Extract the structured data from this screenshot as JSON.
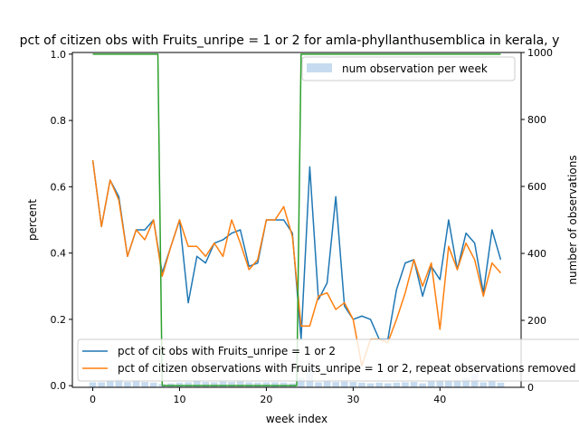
{
  "chart_data": {
    "type": "line",
    "title": "pct of citizen obs with Fruits_unripe = 1 or 2 for amla-phyllanthusemblica in kerala, y",
    "xlabel": "week index",
    "ylabel": "percent",
    "ylabel_right": "number of observations",
    "xlim": [
      -2.35,
      49.35
    ],
    "ylim": [
      -0.005,
      1.005
    ],
    "ylim_right": [
      0,
      1000
    ],
    "x_ticks": [
      0,
      10,
      20,
      30,
      40
    ],
    "y_ticks": [
      0.0,
      0.2,
      0.4,
      0.6,
      0.8,
      1.0
    ],
    "y_ticks_right": [
      0,
      200,
      400,
      600,
      800,
      1000
    ],
    "grid": false,
    "legend_upper": {
      "placement": "top-right",
      "entries": [
        "num observation per week"
      ]
    },
    "legend_lower": {
      "placement": "bottom-left",
      "entries": [
        "pct of cit obs with Fruits_unripe = 1 or 2",
        "pct of citizen observations with Fruits_unripe = 1 or 2, repeat observations removed"
      ]
    },
    "x": [
      0,
      1,
      2,
      3,
      4,
      5,
      6,
      7,
      8,
      9,
      10,
      11,
      12,
      13,
      14,
      15,
      16,
      17,
      18,
      19,
      20,
      21,
      22,
      23,
      24,
      25,
      26,
      27,
      28,
      29,
      30,
      31,
      32,
      33,
      34,
      35,
      36,
      37,
      38,
      39,
      40,
      41,
      42,
      43,
      44,
      45,
      46,
      47
    ],
    "series": [
      {
        "name": "pct of cit obs with Fruits_unripe = 1 or 2",
        "color": "#1f77b4",
        "axis": "left",
        "values": [
          0.68,
          0.48,
          0.62,
          0.57,
          0.39,
          0.47,
          0.47,
          0.5,
          0.34,
          0.42,
          0.5,
          0.25,
          0.39,
          0.37,
          0.43,
          0.44,
          0.46,
          0.47,
          0.36,
          0.37,
          0.5,
          0.5,
          0.5,
          0.46,
          0.14,
          0.66,
          0.26,
          0.31,
          0.57,
          0.24,
          0.2,
          0.21,
          0.2,
          0.14,
          0.14,
          0.29,
          0.37,
          0.38,
          0.27,
          0.36,
          0.32,
          0.5,
          0.35,
          0.46,
          0.43,
          0.28,
          0.47,
          0.38
        ]
      },
      {
        "name": "pct of citizen observations with Fruits_unripe = 1 or 2, repeat observations removed",
        "color": "#ff7f0e",
        "axis": "left",
        "values": [
          0.68,
          0.48,
          0.62,
          0.56,
          0.39,
          0.47,
          0.44,
          0.5,
          0.33,
          0.42,
          0.5,
          0.42,
          0.42,
          0.39,
          0.43,
          0.39,
          0.5,
          0.43,
          0.35,
          0.38,
          0.5,
          0.5,
          0.54,
          0.45,
          0.18,
          0.18,
          0.27,
          0.28,
          0.23,
          0.25,
          0.2,
          0.06,
          0.14,
          0.14,
          0.13,
          0.2,
          0.28,
          0.38,
          0.3,
          0.37,
          0.17,
          0.42,
          0.35,
          0.43,
          0.38,
          0.27,
          0.37,
          0.34
        ]
      },
      {
        "name": "",
        "color": "#2ca02c",
        "axis": "left",
        "values": [
          1.0,
          1.0,
          1.0,
          1.0,
          1.0,
          1.0,
          1.0,
          1.0,
          0.0,
          0.0,
          0.0,
          0.0,
          0.0,
          0.0,
          0.0,
          0.0,
          0.0,
          0.0,
          0.0,
          0.0,
          0.0,
          0.0,
          0.0,
          0.0,
          1.0,
          1.0,
          1.0,
          1.0,
          1.0,
          1.0,
          1.0,
          1.0,
          1.0,
          1.0,
          1.0,
          1.0,
          1.0,
          1.0,
          1.0,
          1.0,
          1.0,
          1.0,
          1.0,
          1.0,
          1.0,
          1.0,
          1.0,
          1.0
        ]
      },
      {
        "name": "num observation per week",
        "type": "bar",
        "color": "#c6dbef",
        "axis": "right",
        "values": [
          15,
          15,
          18,
          25,
          16,
          18,
          16,
          14,
          10,
          12,
          14,
          15,
          18,
          16,
          15,
          17,
          16,
          17,
          15,
          14,
          15,
          15,
          14,
          12,
          30,
          60,
          15,
          18,
          16,
          17,
          16,
          14,
          12,
          14,
          12,
          14,
          15,
          16,
          12,
          20,
          18,
          20,
          22,
          28,
          40,
          15,
          18,
          14
        ]
      }
    ]
  }
}
